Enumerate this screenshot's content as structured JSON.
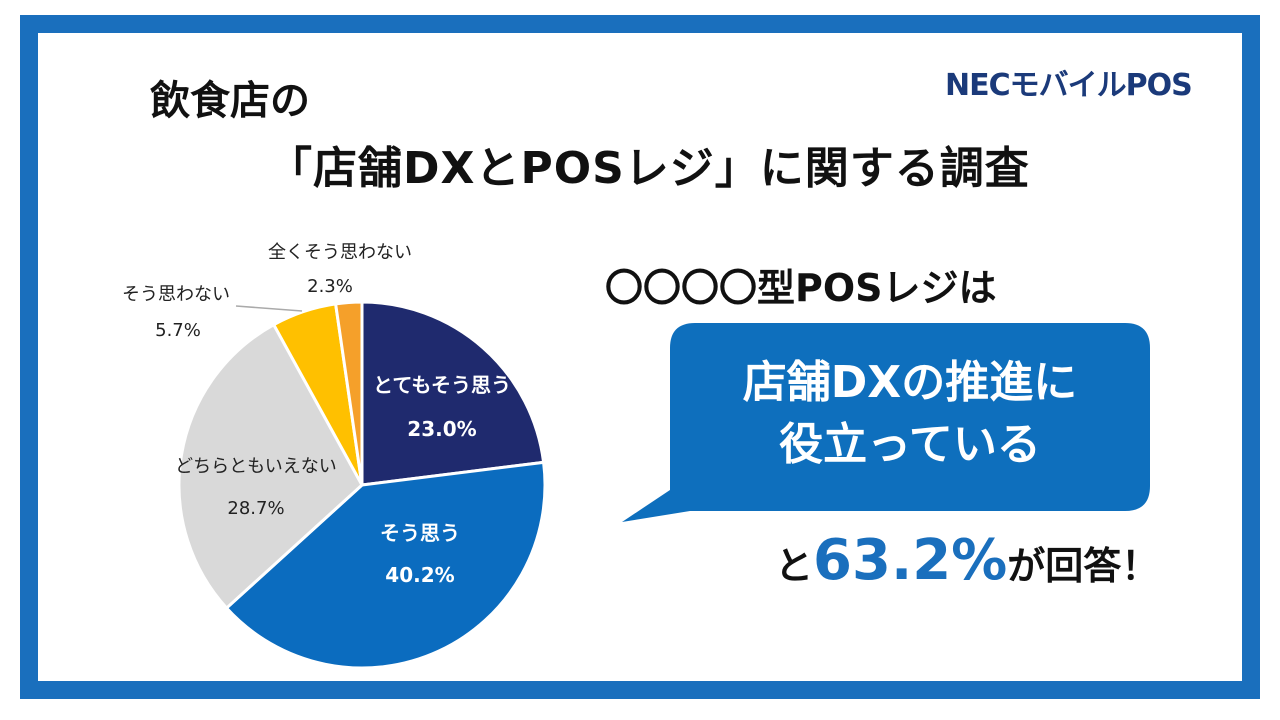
{
  "header": {
    "title_line1": "飲食店の",
    "title_line2": "「店舗DXとPOSレジ」に関する調査",
    "logo": "NECモバイルPOS"
  },
  "callout": {
    "lead": "〇〇〇〇型POSレジは",
    "bubble_line1": "店舗DXの推進に",
    "bubble_line2": "役立っている",
    "answer_prefix": "と",
    "answer_value": "63.2%",
    "answer_suffix": "が回答！",
    "accent_color": "#1a6fbd"
  },
  "chart_data": {
    "type": "pie",
    "start": "12 o'clock, clockwise",
    "categories": [
      "とてもそう思う",
      "そう思う",
      "どちらともいえない",
      "そう思わない",
      "全くそう思わない"
    ],
    "values": [
      23.0,
      40.2,
      28.7,
      5.7,
      2.3
    ],
    "labels": [
      "23.0%",
      "40.2%",
      "28.7%",
      "5.7%",
      "2.3%"
    ],
    "colors": [
      "#1f2a6e",
      "#0b6cbf",
      "#d9d9d9",
      "#ffc000",
      "#f5a02a"
    ]
  }
}
